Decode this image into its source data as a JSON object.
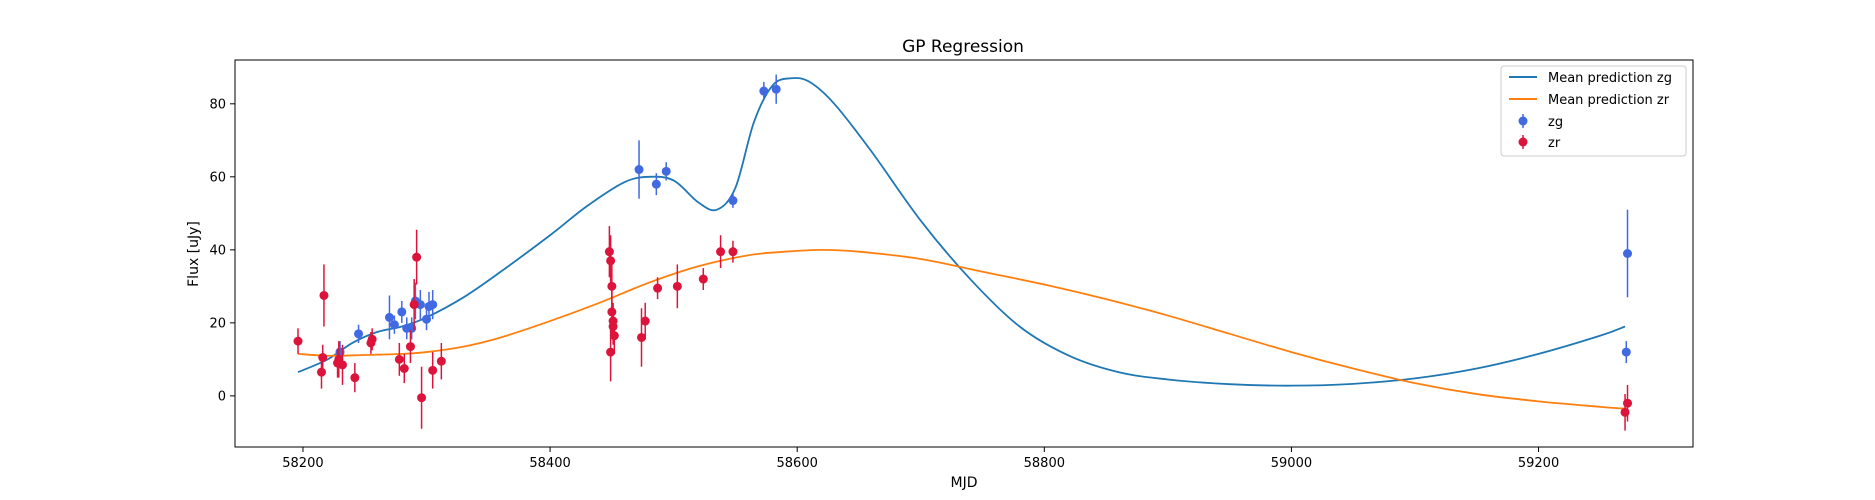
{
  "chart_data": {
    "type": "scatter",
    "title": "GP Regression",
    "xlabel": "MJD",
    "ylabel": "Flux [uJy]",
    "xlim": [
      58145,
      59325
    ],
    "ylim": [
      -14,
      92
    ],
    "xticks": [
      58200,
      58400,
      58600,
      58800,
      59000,
      59200
    ],
    "yticks": [
      0,
      20,
      40,
      60,
      80
    ],
    "grid": false,
    "legend_position": "top-right",
    "legend": [
      "Mean prediction zg",
      "Mean prediction zr",
      "zg",
      "zr"
    ],
    "colors": {
      "zg_line": "#1f77b4",
      "zr_line": "#ff7f0e",
      "zg_points": "#4169e1",
      "zr_points": "#dc143c"
    },
    "lines": [
      {
        "name": "Mean prediction zg",
        "x": [
          58196,
          58220,
          58240,
          58260,
          58280,
          58300,
          58330,
          58360,
          58400,
          58430,
          58460,
          58480,
          58500,
          58520,
          58535,
          58550,
          58565,
          58580,
          58595,
          58610,
          58630,
          58660,
          58700,
          58740,
          58780,
          58820,
          58860,
          58900,
          58950,
          59000,
          59050,
          59100,
          59150,
          59200,
          59250,
          59270
        ],
        "y": [
          6.5,
          10,
          14.5,
          17.5,
          19,
          21.5,
          27,
          34,
          44,
          52,
          58.5,
          60,
          59,
          53,
          51,
          57,
          75,
          85,
          87,
          86,
          80,
          67,
          48,
          32,
          19,
          11,
          6.5,
          4.5,
          3.2,
          2.8,
          3.3,
          4.8,
          7.5,
          11.5,
          16.5,
          19
        ]
      },
      {
        "name": "Mean prediction zr",
        "x": [
          58196,
          58220,
          58250,
          58280,
          58300,
          58330,
          58360,
          58400,
          58440,
          58480,
          58520,
          58560,
          58590,
          58620,
          58650,
          58700,
          58750,
          58800,
          58850,
          58900,
          58950,
          59000,
          59050,
          59100,
          59150,
          59200,
          59250,
          59270
        ],
        "y": [
          11.5,
          11,
          11.2,
          11.5,
          12,
          13.5,
          16,
          20.5,
          25.5,
          31,
          35.5,
          38.5,
          39.5,
          40,
          39.5,
          37.5,
          34,
          30.5,
          26.5,
          22,
          17,
          12,
          7.5,
          3.5,
          0.5,
          -1.5,
          -3,
          -3.5
        ]
      }
    ],
    "series": [
      {
        "name": "zg",
        "points": [
          {
            "x": 58230,
            "y": 12,
            "err": 3
          },
          {
            "x": 58245,
            "y": 17,
            "err": 2.5
          },
          {
            "x": 58270,
            "y": 21.5,
            "err": 6
          },
          {
            "x": 58274,
            "y": 19.5,
            "err": 2.5
          },
          {
            "x": 58280,
            "y": 23,
            "err": 3
          },
          {
            "x": 58284,
            "y": 18.5,
            "err": 3
          },
          {
            "x": 58288,
            "y": 18.5,
            "err": 3
          },
          {
            "x": 58291,
            "y": 26,
            "err": 5
          },
          {
            "x": 58295,
            "y": 25,
            "err": 4
          },
          {
            "x": 58300,
            "y": 21,
            "err": 3
          },
          {
            "x": 58302,
            "y": 24.5,
            "err": 4
          },
          {
            "x": 58305,
            "y": 25,
            "err": 4
          },
          {
            "x": 58472,
            "y": 62,
            "err": 8
          },
          {
            "x": 58486,
            "y": 58,
            "err": 3
          },
          {
            "x": 58494,
            "y": 61.5,
            "err": 2.5
          },
          {
            "x": 58548,
            "y": 53.5,
            "err": 2
          },
          {
            "x": 58573,
            "y": 83.5,
            "err": 2.5
          },
          {
            "x": 58583,
            "y": 84,
            "err": 4
          },
          {
            "x": 59272,
            "y": 39,
            "err": 12
          },
          {
            "x": 59271,
            "y": 12,
            "err": 3
          }
        ]
      },
      {
        "name": "zr",
        "points": [
          {
            "x": 58196,
            "y": 15,
            "err": 3.5
          },
          {
            "x": 58215,
            "y": 6.5,
            "err": 4.5
          },
          {
            "x": 58216,
            "y": 10.5,
            "err": 3.5
          },
          {
            "x": 58217,
            "y": 27.5,
            "err": 8.5
          },
          {
            "x": 58228,
            "y": 9,
            "err": 4
          },
          {
            "x": 58229,
            "y": 10,
            "err": 5
          },
          {
            "x": 58232,
            "y": 8.5,
            "err": 5.5
          },
          {
            "x": 58242,
            "y": 5,
            "err": 4
          },
          {
            "x": 58255,
            "y": 14.5,
            "err": 3
          },
          {
            "x": 58256,
            "y": 15.5,
            "err": 3
          },
          {
            "x": 58278,
            "y": 10,
            "err": 4.5
          },
          {
            "x": 58282,
            "y": 7.5,
            "err": 4
          },
          {
            "x": 58287,
            "y": 13.5,
            "err": 4.5
          },
          {
            "x": 58290,
            "y": 25,
            "err": 7
          },
          {
            "x": 58292,
            "y": 38,
            "err": 7.5
          },
          {
            "x": 58296,
            "y": -0.5,
            "err": 8.5
          },
          {
            "x": 58305,
            "y": 7,
            "err": 5
          },
          {
            "x": 58312,
            "y": 9.5,
            "err": 5
          },
          {
            "x": 58448,
            "y": 39.5,
            "err": 7
          },
          {
            "x": 58449,
            "y": 37,
            "err": 7
          },
          {
            "x": 58450,
            "y": 30,
            "err": 6
          },
          {
            "x": 58450,
            "y": 23,
            "err": 6
          },
          {
            "x": 58451,
            "y": 20.5,
            "err": 5
          },
          {
            "x": 58451,
            "y": 19,
            "err": 5
          },
          {
            "x": 58452,
            "y": 16.5,
            "err": 5
          },
          {
            "x": 58449,
            "y": 12,
            "err": 8
          },
          {
            "x": 58474,
            "y": 16,
            "err": 8
          },
          {
            "x": 58477,
            "y": 20.5,
            "err": 5
          },
          {
            "x": 58487,
            "y": 29.5,
            "err": 3
          },
          {
            "x": 58503,
            "y": 30,
            "err": 6
          },
          {
            "x": 58524,
            "y": 32,
            "err": 3
          },
          {
            "x": 58538,
            "y": 39.5,
            "err": 4.5
          },
          {
            "x": 58548,
            "y": 39.5,
            "err": 3
          },
          {
            "x": 59270,
            "y": -4.5,
            "err": 5
          },
          {
            "x": 59272,
            "y": -2,
            "err": 5
          }
        ]
      }
    ]
  }
}
